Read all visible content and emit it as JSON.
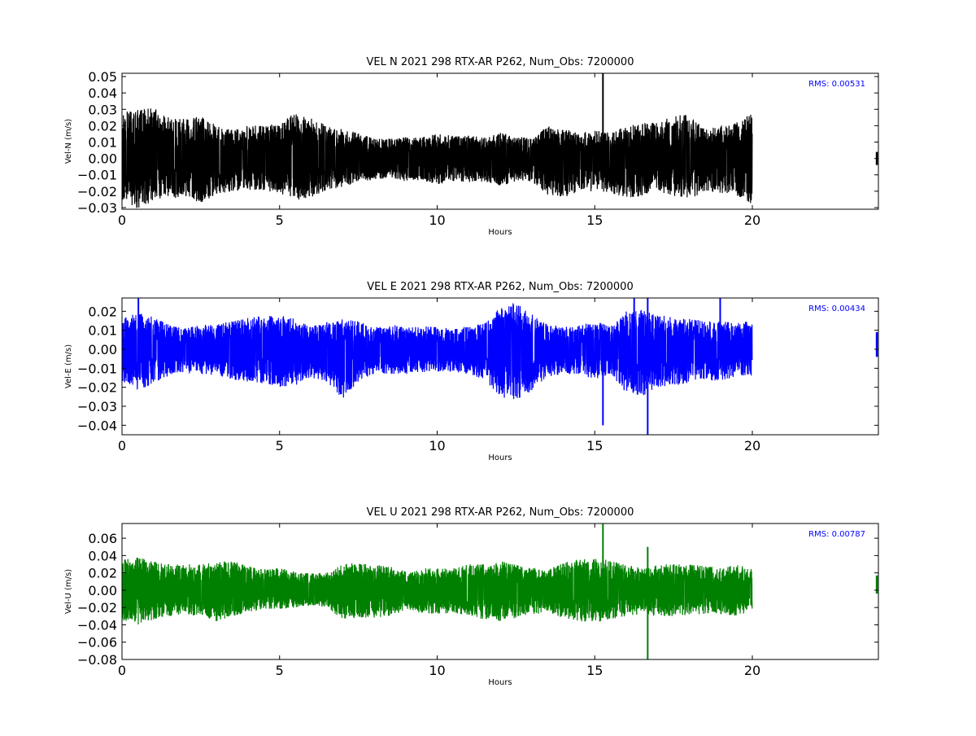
{
  "chart_data": [
    {
      "type": "line",
      "title": "VEL N 2021 298 RTX-AR  P262, Num_Obs: 7200000",
      "xlabel": "Hours",
      "ylabel": "Vel-N (m/s)",
      "xlim": [
        0,
        24
      ],
      "ylim": [
        -0.031,
        0.052
      ],
      "x_ticks": [
        "0",
        "5",
        "10",
        "15",
        "20"
      ],
      "y_ticks": [
        "0.05",
        "0.04",
        "0.03",
        "0.02",
        "0.01",
        "0.00",
        "−0.01",
        "−0.02",
        "−0.03"
      ],
      "annotation": "RMS:  0.00531",
      "grid": false,
      "color": "#000000",
      "series": [
        {
          "x": [
            0,
            0.5,
            1,
            1.5,
            2,
            2.5,
            3,
            3.5,
            4,
            4.5,
            5,
            5.5,
            6,
            6.5,
            7,
            7.5,
            8,
            8.5,
            9,
            9.5,
            10,
            10.5,
            11,
            11.5,
            12,
            12.5,
            13,
            13.5,
            14,
            14.5,
            15,
            15.5,
            16,
            16.5,
            17,
            17.5,
            18,
            18.5,
            19,
            19.5,
            20
          ],
          "upper": [
            0.028,
            0.03,
            0.032,
            0.025,
            0.024,
            0.026,
            0.021,
            0.018,
            0.02,
            0.02,
            0.022,
            0.028,
            0.025,
            0.02,
            0.018,
            0.016,
            0.012,
            0.012,
            0.013,
            0.013,
            0.015,
            0.014,
            0.014,
            0.013,
            0.016,
            0.013,
            0.013,
            0.02,
            0.018,
            0.016,
            0.017,
            0.016,
            0.02,
            0.022,
            0.022,
            0.026,
            0.027,
            0.018,
            0.02,
            0.022,
            0.028
          ],
          "lower": [
            -0.025,
            -0.031,
            -0.026,
            -0.025,
            -0.024,
            -0.027,
            -0.022,
            -0.02,
            -0.019,
            -0.02,
            -0.021,
            -0.026,
            -0.024,
            -0.019,
            -0.018,
            -0.014,
            -0.013,
            -0.012,
            -0.014,
            -0.013,
            -0.016,
            -0.014,
            -0.015,
            -0.014,
            -0.017,
            -0.014,
            -0.014,
            -0.022,
            -0.025,
            -0.02,
            -0.02,
            -0.021,
            -0.024,
            -0.023,
            -0.02,
            -0.023,
            -0.025,
            -0.02,
            -0.021,
            -0.023,
            -0.028
          ]
        }
      ],
      "spikes": [
        {
          "x": 15.26,
          "y_min": -0.012,
          "y_max": 0.052
        }
      ],
      "tail": {
        "x": 23.95,
        "y_min": -0.004,
        "y_max": 0.004
      }
    },
    {
      "type": "line",
      "title": "VEL E 2021 298 RTX-AR  P262, Num_Obs: 7200000",
      "xlabel": "Hours",
      "ylabel": "Vel-E (m/s)",
      "xlim": [
        0,
        24
      ],
      "ylim": [
        -0.045,
        0.027
      ],
      "x_ticks": [
        "0",
        "5",
        "10",
        "15",
        "20"
      ],
      "y_ticks": [
        "0.02",
        "0.01",
        "0.00",
        "−0.01",
        "−0.02",
        "−0.03",
        "−0.04"
      ],
      "annotation": "RMS:  0.00434",
      "grid": false,
      "color": "#0000ff",
      "series": [
        {
          "x": [
            0,
            0.5,
            1,
            1.5,
            2,
            2.5,
            3,
            3.5,
            4,
            4.5,
            5,
            5.5,
            6,
            6.5,
            7,
            7.5,
            8,
            8.5,
            9,
            9.5,
            10,
            10.5,
            11,
            11.5,
            12,
            12.5,
            13,
            13.5,
            14,
            14.5,
            15,
            15.5,
            16,
            16.5,
            17,
            17.5,
            18,
            18.5,
            19,
            19.5,
            20
          ],
          "upper": [
            0.016,
            0.02,
            0.017,
            0.013,
            0.011,
            0.013,
            0.013,
            0.015,
            0.017,
            0.018,
            0.018,
            0.016,
            0.012,
            0.014,
            0.016,
            0.015,
            0.012,
            0.013,
            0.012,
            0.012,
            0.012,
            0.011,
            0.012,
            0.014,
            0.022,
            0.025,
            0.019,
            0.013,
            0.012,
            0.013,
            0.015,
            0.012,
            0.02,
            0.021,
            0.018,
            0.017,
            0.016,
            0.015,
            0.015,
            0.014,
            0.015
          ],
          "lower": [
            -0.017,
            -0.022,
            -0.018,
            -0.014,
            -0.012,
            -0.013,
            -0.014,
            -0.016,
            -0.017,
            -0.018,
            -0.02,
            -0.019,
            -0.015,
            -0.017,
            -0.026,
            -0.017,
            -0.013,
            -0.013,
            -0.013,
            -0.012,
            -0.012,
            -0.012,
            -0.013,
            -0.016,
            -0.025,
            -0.027,
            -0.022,
            -0.015,
            -0.013,
            -0.013,
            -0.016,
            -0.013,
            -0.023,
            -0.025,
            -0.02,
            -0.019,
            -0.018,
            -0.016,
            -0.017,
            -0.014,
            -0.014
          ]
        }
      ],
      "spikes": [
        {
          "x": 0.52,
          "y_min": -0.01,
          "y_max": 0.027
        },
        {
          "x": 15.26,
          "y_min": -0.04,
          "y_max": 0.01
        },
        {
          "x": 16.25,
          "y_min": -0.01,
          "y_max": 0.027
        },
        {
          "x": 16.68,
          "y_min": -0.045,
          "y_max": 0.027
        },
        {
          "x": 18.98,
          "y_min": -0.01,
          "y_max": 0.027
        }
      ],
      "tail": {
        "x": 23.95,
        "y_min": -0.004,
        "y_max": 0.009
      }
    },
    {
      "type": "line",
      "title": "VEL U 2021 298 RTX-AR  P262, Num_Obs: 7200000",
      "xlabel": "Hours",
      "ylabel": "Vel-U (m/s)",
      "xlim": [
        0,
        24
      ],
      "ylim": [
        -0.08,
        0.077
      ],
      "x_ticks": [
        "0",
        "5",
        "10",
        "15",
        "20"
      ],
      "y_ticks": [
        "0.06",
        "0.04",
        "0.02",
        "0.00",
        "−0.02",
        "−0.04",
        "−0.06",
        "−0.08"
      ],
      "annotation": "RMS:  0.00787",
      "grid": false,
      "color": "#008000",
      "series": [
        {
          "x": [
            0,
            0.5,
            1,
            1.5,
            2,
            2.5,
            3,
            3.5,
            4,
            4.5,
            5,
            5.5,
            6,
            6.5,
            7,
            7.5,
            8,
            8.5,
            9,
            9.5,
            10,
            10.5,
            11,
            11.5,
            12,
            12.5,
            13,
            13.5,
            14,
            14.5,
            15,
            15.5,
            16,
            16.5,
            17,
            17.5,
            18,
            18.5,
            19,
            19.5,
            20
          ],
          "upper": [
            0.035,
            0.038,
            0.033,
            0.03,
            0.03,
            0.03,
            0.034,
            0.034,
            0.028,
            0.024,
            0.026,
            0.022,
            0.02,
            0.02,
            0.03,
            0.032,
            0.028,
            0.03,
            0.022,
            0.024,
            0.026,
            0.025,
            0.03,
            0.03,
            0.034,
            0.03,
            0.026,
            0.024,
            0.032,
            0.036,
            0.038,
            0.034,
            0.03,
            0.026,
            0.03,
            0.03,
            0.03,
            0.028,
            0.026,
            0.03,
            0.024
          ],
          "lower": [
            -0.035,
            -0.04,
            -0.034,
            -0.03,
            -0.028,
            -0.03,
            -0.036,
            -0.03,
            -0.026,
            -0.022,
            -0.022,
            -0.02,
            -0.018,
            -0.02,
            -0.034,
            -0.032,
            -0.032,
            -0.03,
            -0.024,
            -0.026,
            -0.028,
            -0.026,
            -0.03,
            -0.034,
            -0.036,
            -0.033,
            -0.028,
            -0.026,
            -0.032,
            -0.036,
            -0.038,
            -0.034,
            -0.03,
            -0.028,
            -0.03,
            -0.03,
            -0.03,
            -0.028,
            -0.028,
            -0.03,
            -0.024
          ]
        }
      ],
      "spikes": [
        {
          "x": 15.26,
          "y_min": -0.01,
          "y_max": 0.077
        },
        {
          "x": 16.68,
          "y_min": -0.08,
          "y_max": 0.05
        }
      ],
      "tail": {
        "x": 23.95,
        "y_min": -0.004,
        "y_max": 0.017
      }
    }
  ]
}
